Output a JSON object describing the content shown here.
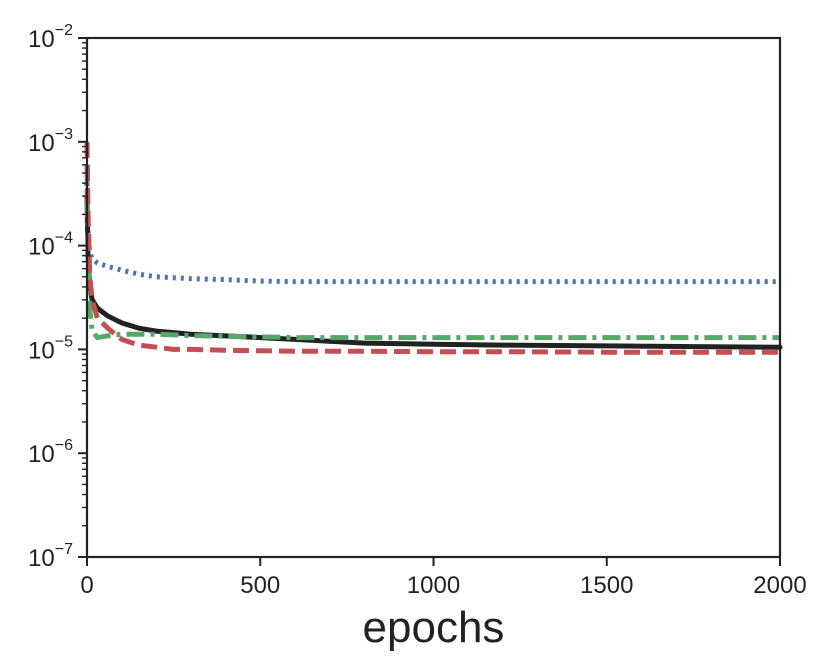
{
  "chart_data": {
    "type": "line",
    "title": "",
    "xlabel": "epochs",
    "ylabel": "",
    "xlim": [
      0,
      2000
    ],
    "ylim": [
      1e-07,
      0.01
    ],
    "yscale": "log",
    "grid": false,
    "legend": "none",
    "x_ticks": [
      {
        "value": 0,
        "label": "0"
      },
      {
        "value": 500,
        "label": "500"
      },
      {
        "value": 1000,
        "label": "1000"
      },
      {
        "value": 1500,
        "label": "1500"
      },
      {
        "value": 2000,
        "label": "2000"
      }
    ],
    "y_ticks": [
      {
        "value": 0.01,
        "base": "10",
        "exp": "−2"
      },
      {
        "value": 0.001,
        "base": "10",
        "exp": "−3"
      },
      {
        "value": 0.0001,
        "base": "10",
        "exp": "−4"
      },
      {
        "value": 1e-05,
        "base": "10",
        "exp": "−5"
      },
      {
        "value": 1e-06,
        "base": "10",
        "exp": "−6"
      },
      {
        "value": 1e-07,
        "base": "10",
        "exp": "−7"
      }
    ],
    "series": [
      {
        "color": "#4c72b0",
        "style": "dotted",
        "x": [
          0,
          3,
          8,
          15,
          30,
          60,
          100,
          150,
          200,
          250,
          300,
          400,
          500,
          600,
          800,
          1000,
          1200,
          1500,
          1800,
          2000
        ],
        "y": [
          0.0004,
          0.00013,
          8.5e-05,
          7.5e-05,
          6.8e-05,
          6.3e-05,
          5.8e-05,
          5.3e-05,
          5e-05,
          4.9e-05,
          4.8e-05,
          4.7e-05,
          4.55e-05,
          4.5e-05,
          4.5e-05,
          4.5e-05,
          4.5e-05,
          4.5e-05,
          4.5e-05,
          4.5e-05
        ]
      },
      {
        "color": "#222222",
        "style": "solid",
        "x": [
          0,
          3,
          8,
          15,
          30,
          60,
          100,
          150,
          200,
          250,
          300,
          400,
          500,
          600,
          800,
          1000,
          1200,
          1500,
          1800,
          2000
        ],
        "y": [
          0.0003,
          8e-05,
          4e-05,
          3e-05,
          2.5e-05,
          2.1e-05,
          1.8e-05,
          1.6e-05,
          1.5e-05,
          1.45e-05,
          1.4e-05,
          1.35e-05,
          1.3e-05,
          1.25e-05,
          1.15e-05,
          1.12e-05,
          1.1e-05,
          1.08e-05,
          1.06e-05,
          1.05e-05
        ]
      },
      {
        "color": "#55a868",
        "style": "dashdot",
        "x": [
          0,
          3,
          8,
          15,
          30,
          60,
          100,
          150,
          200,
          250,
          300,
          400,
          500,
          600,
          800,
          1000,
          1200,
          1500,
          1800,
          2000
        ],
        "y": [
          0.0006,
          0.0001,
          2.5e-05,
          1.5e-05,
          1.3e-05,
          1.35e-05,
          1.4e-05,
          1.4e-05,
          1.4e-05,
          1.38e-05,
          1.36e-05,
          1.34e-05,
          1.32e-05,
          1.3e-05,
          1.3e-05,
          1.3e-05,
          1.3e-05,
          1.3e-05,
          1.3e-05,
          1.3e-05
        ]
      },
      {
        "color": "#c44e52",
        "style": "dashed",
        "x": [
          0,
          3,
          8,
          15,
          30,
          60,
          100,
          150,
          200,
          250,
          300,
          400,
          500,
          600,
          800,
          1000,
          1200,
          1500,
          1800,
          2000
        ],
        "y": [
          0.001,
          0.0002,
          5e-05,
          3e-05,
          2e-05,
          1.6e-05,
          1.25e-05,
          1.1e-05,
          1.05e-05,
          1e-05,
          1e-05,
          9.8e-06,
          9.7e-06,
          9.6e-06,
          9.6e-06,
          9.5e-06,
          9.5e-06,
          9.4e-06,
          9.4e-06,
          9.4e-06
        ]
      }
    ]
  }
}
